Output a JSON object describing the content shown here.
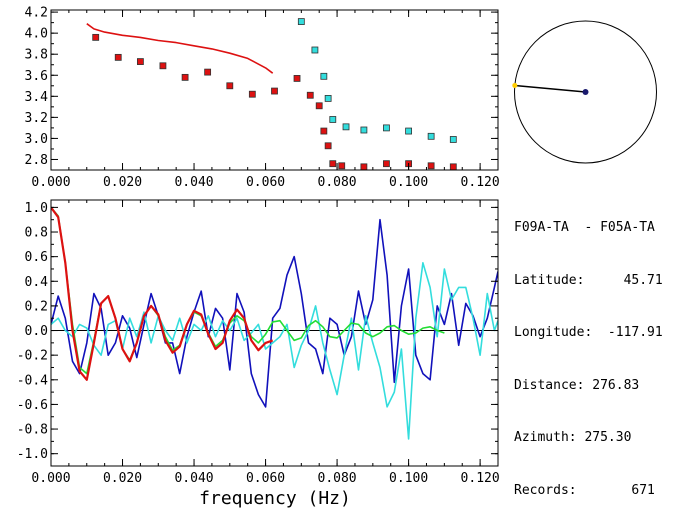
{
  "colors": {
    "axes": "#000000",
    "red": "#dd1111",
    "cyan": "#33dddd",
    "blue": "#1111bb",
    "green": "#22dd33",
    "marker_edge": "#333333"
  },
  "info_panel": {
    "pair": "F09A-TA  - F05A-TA",
    "latitude": "Latitude:     45.71",
    "longitude": "Longitude:  -117.91",
    "distance": "Distance: 276.83",
    "azimuth": "Azimuth: 275.30",
    "records": "Records:       671"
  },
  "azimuth_dial": {
    "azimuth_deg": 275.3,
    "center_marker_color": "#1a1a6e",
    "end_marker_color": "#ffcc00"
  },
  "chart_data": [
    {
      "type": "scatter",
      "panel": "top",
      "xlim": [
        0.0,
        0.125
      ],
      "ylim": [
        2.7,
        4.22
      ],
      "x_ticks": [
        "0.000",
        "0.020",
        "0.040",
        "0.060",
        "0.080",
        "0.100",
        "0.120"
      ],
      "y_ticks": [
        "2.8",
        "3.0",
        "3.2",
        "3.4",
        "3.6",
        "3.8",
        "4.0",
        "4.2"
      ],
      "series": [
        {
          "kind": "points",
          "color": "#dd1111",
          "x": [
            0.0125,
            0.0188,
            0.025,
            0.0313,
            0.0375,
            0.0438,
            0.05,
            0.0563,
            0.0625,
            0.0688,
            0.0725,
            0.075,
            0.0763,
            0.0775,
            0.0788,
            0.0813,
            0.0875,
            0.0938,
            0.1,
            0.1063,
            0.1125
          ],
          "y": [
            3.96,
            3.77,
            3.73,
            3.69,
            3.58,
            3.63,
            3.5,
            3.42,
            3.45,
            3.57,
            3.41,
            3.31,
            3.07,
            2.93,
            2.76,
            2.74,
            2.73,
            2.76,
            2.76,
            2.74,
            2.73
          ]
        },
        {
          "kind": "points",
          "color": "#33dddd",
          "x": [
            0.07,
            0.0738,
            0.0763,
            0.0775,
            0.0788,
            0.0825,
            0.0875,
            0.0938,
            0.1,
            0.1063,
            0.1125
          ],
          "y": [
            4.11,
            3.84,
            3.59,
            3.38,
            3.18,
            3.11,
            3.08,
            3.1,
            3.07,
            3.02,
            2.99
          ]
        },
        {
          "kind": "line",
          "color": "#dd1111",
          "x": [
            0.01,
            0.012,
            0.015,
            0.02,
            0.025,
            0.03,
            0.035,
            0.04,
            0.045,
            0.05,
            0.055,
            0.06,
            0.062
          ],
          "y": [
            4.09,
            4.04,
            4.01,
            3.98,
            3.96,
            3.93,
            3.91,
            3.88,
            3.85,
            3.81,
            3.76,
            3.67,
            3.62
          ]
        }
      ]
    },
    {
      "type": "line",
      "panel": "bottom",
      "xlabel": "frequency (Hz)",
      "xlim": [
        0.0,
        0.125
      ],
      "ylim": [
        -1.1,
        1.06
      ],
      "x_ticks": [
        "0.000",
        "0.020",
        "0.040",
        "0.060",
        "0.080",
        "0.100",
        "0.120"
      ],
      "y_ticks": [
        "1.0",
        "0.8",
        "0.6",
        "0.4",
        "0.2",
        "0.0",
        "-0.2",
        "-0.4",
        "-0.6",
        "-0.8",
        "-1.0"
      ],
      "series": [
        {
          "color": "#1111bb",
          "x": [
            0.0,
            0.002,
            0.004,
            0.006,
            0.008,
            0.01,
            0.012,
            0.014,
            0.016,
            0.018,
            0.02,
            0.022,
            0.024,
            0.026,
            0.028,
            0.03,
            0.032,
            0.034,
            0.036,
            0.038,
            0.04,
            0.042,
            0.044,
            0.046,
            0.048,
            0.05,
            0.052,
            0.054,
            0.056,
            0.058,
            0.06,
            0.062,
            0.064,
            0.066,
            0.068,
            0.07,
            0.072,
            0.074,
            0.076,
            0.078,
            0.08,
            0.082,
            0.084,
            0.086,
            0.088,
            0.09,
            0.092,
            0.094,
            0.096,
            0.098,
            0.1,
            0.102,
            0.104,
            0.106,
            0.108,
            0.11,
            0.112,
            0.114,
            0.116,
            0.118,
            0.12,
            0.122,
            0.124,
            0.125
          ],
          "y": [
            0.05,
            0.28,
            0.1,
            -0.25,
            -0.35,
            -0.1,
            0.3,
            0.18,
            -0.2,
            -0.1,
            0.12,
            0.02,
            -0.22,
            0.05,
            0.3,
            0.12,
            -0.1,
            -0.1,
            -0.35,
            -0.05,
            0.15,
            0.32,
            -0.05,
            0.18,
            0.1,
            -0.32,
            0.3,
            0.15,
            -0.35,
            -0.52,
            -0.62,
            0.1,
            0.18,
            0.45,
            0.6,
            0.3,
            -0.1,
            -0.15,
            -0.35,
            0.1,
            0.05,
            -0.2,
            -0.05,
            0.32,
            0.05,
            0.25,
            0.9,
            0.45,
            -0.42,
            0.2,
            0.5,
            -0.2,
            -0.35,
            -0.4,
            0.2,
            0.05,
            0.3,
            -0.12,
            0.22,
            0.12,
            -0.05,
            0.1,
            0.35,
            0.48
          ]
        },
        {
          "color": "#33dddd",
          "x": [
            0.0,
            0.002,
            0.004,
            0.006,
            0.008,
            0.01,
            0.012,
            0.014,
            0.016,
            0.018,
            0.02,
            0.022,
            0.024,
            0.026,
            0.028,
            0.03,
            0.032,
            0.034,
            0.036,
            0.038,
            0.04,
            0.042,
            0.044,
            0.046,
            0.048,
            0.05,
            0.052,
            0.054,
            0.056,
            0.058,
            0.06,
            0.062,
            0.064,
            0.066,
            0.068,
            0.07,
            0.072,
            0.074,
            0.076,
            0.078,
            0.08,
            0.082,
            0.084,
            0.086,
            0.088,
            0.09,
            0.092,
            0.094,
            0.096,
            0.098,
            0.1,
            0.102,
            0.104,
            0.106,
            0.108,
            0.11,
            0.112,
            0.114,
            0.116,
            0.118,
            0.12,
            0.122,
            0.124,
            0.125
          ],
          "y": [
            0.05,
            0.1,
            0.0,
            -0.05,
            0.05,
            0.02,
            -0.12,
            -0.2,
            0.05,
            0.08,
            -0.15,
            0.1,
            -0.05,
            0.15,
            -0.1,
            0.12,
            0.0,
            -0.08,
            0.1,
            -0.1,
            0.05,
            0.0,
            0.12,
            -0.05,
            0.08,
            0.0,
            0.1,
            -0.08,
            -0.02,
            0.05,
            -0.15,
            -0.1,
            -0.05,
            0.05,
            -0.3,
            -0.12,
            0.0,
            0.2,
            -0.1,
            -0.32,
            -0.52,
            -0.2,
            0.1,
            -0.32,
            0.12,
            -0.1,
            -0.3,
            -0.62,
            -0.5,
            -0.15,
            -0.88,
            0.1,
            0.55,
            0.35,
            -0.05,
            0.5,
            0.25,
            0.35,
            0.35,
            0.1,
            -0.2,
            0.3,
            0.0,
            0.08
          ]
        },
        {
          "color": "#22dd33",
          "x": [
            0.0,
            0.002,
            0.004,
            0.006,
            0.008,
            0.01,
            0.012,
            0.014,
            0.016,
            0.018,
            0.02,
            0.022,
            0.024,
            0.026,
            0.028,
            0.03,
            0.032,
            0.034,
            0.036,
            0.038,
            0.04,
            0.042,
            0.044,
            0.046,
            0.048,
            0.05,
            0.052,
            0.054,
            0.056,
            0.058,
            0.06,
            0.062,
            0.064,
            0.066,
            0.068,
            0.07,
            0.072,
            0.074,
            0.076,
            0.078,
            0.08,
            0.082,
            0.084,
            0.086,
            0.088,
            0.09,
            0.092,
            0.094,
            0.096,
            0.098,
            0.1,
            0.102,
            0.104,
            0.106,
            0.108,
            0.11
          ],
          "y": [
            1.0,
            0.93,
            0.55,
            0.05,
            -0.3,
            -0.35,
            -0.08,
            0.22,
            0.28,
            0.1,
            -0.15,
            -0.24,
            -0.1,
            0.12,
            0.2,
            0.12,
            -0.05,
            -0.16,
            -0.12,
            0.05,
            0.15,
            0.12,
            -0.02,
            -0.13,
            -0.08,
            0.06,
            0.12,
            0.08,
            -0.05,
            -0.1,
            -0.03,
            0.07,
            0.08,
            0.0,
            -0.08,
            -0.06,
            0.04,
            0.08,
            0.03,
            -0.05,
            -0.06,
            0.0,
            0.06,
            0.05,
            -0.02,
            -0.05,
            -0.02,
            0.03,
            0.04,
            0.0,
            -0.03,
            -0.02,
            0.02,
            0.03,
            0.0,
            -0.02
          ]
        },
        {
          "color": "#dd1111",
          "x": [
            0.0,
            0.002,
            0.004,
            0.006,
            0.008,
            0.01,
            0.012,
            0.014,
            0.016,
            0.018,
            0.02,
            0.022,
            0.024,
            0.026,
            0.028,
            0.03,
            0.032,
            0.034,
            0.036,
            0.038,
            0.04,
            0.042,
            0.044,
            0.046,
            0.048,
            0.05,
            0.052,
            0.054,
            0.056,
            0.058,
            0.06,
            0.062
          ],
          "y": [
            1.0,
            0.92,
            0.55,
            0.0,
            -0.33,
            -0.4,
            -0.1,
            0.22,
            0.28,
            0.1,
            -0.15,
            -0.25,
            -0.1,
            0.12,
            0.2,
            0.13,
            -0.08,
            -0.18,
            -0.13,
            0.05,
            0.16,
            0.13,
            -0.03,
            -0.15,
            -0.1,
            0.08,
            0.17,
            0.1,
            -0.08,
            -0.16,
            -0.1,
            -0.08
          ]
        }
      ]
    }
  ]
}
